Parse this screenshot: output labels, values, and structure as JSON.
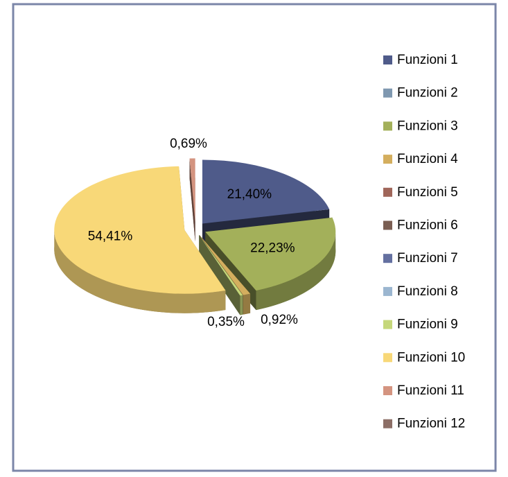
{
  "chart_data": {
    "type": "pie",
    "categories": [
      "Funzioni 1",
      "Funzioni 2",
      "Funzioni 3",
      "Funzioni 4",
      "Funzioni 5",
      "Funzioni 6",
      "Funzioni 7",
      "Funzioni 8",
      "Funzioni 9",
      "Funzioni 10",
      "Funzioni 11",
      "Funzioni 12"
    ],
    "values": [
      21.4,
      0,
      22.23,
      0.92,
      0,
      0,
      0,
      0,
      0.35,
      54.41,
      0.69,
      0
    ],
    "value_labels": [
      "21,40%",
      null,
      "22,23%",
      "0,92%",
      null,
      null,
      null,
      null,
      "0,35%",
      "54,41%",
      "0,69%",
      null
    ],
    "colors": [
      "#4f5b8a",
      "#7f98b0",
      "#a3b05a",
      "#d4ae5e",
      "#a0665a",
      "#7a5e52",
      "#6470a0",
      "#9bb6d0",
      "#c5d77a",
      "#f8d878",
      "#d49480",
      "#8c6e66"
    ],
    "legend": "right"
  }
}
